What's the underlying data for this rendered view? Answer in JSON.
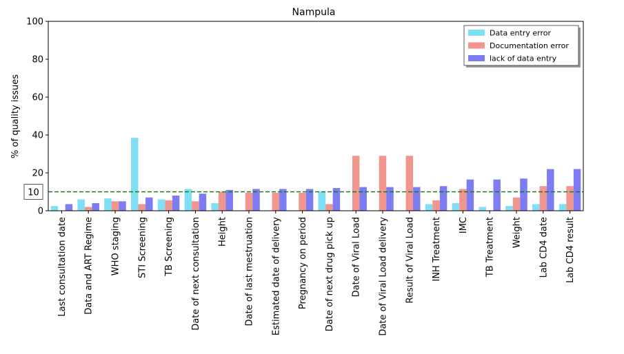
{
  "chart_data": {
    "type": "bar",
    "title": "Nampula",
    "xlabel": "",
    "ylabel": "% of quality issues",
    "ylim": [
      0,
      100
    ],
    "yticks": [
      0,
      20,
      40,
      60,
      80,
      100
    ],
    "grid": false,
    "legend_position": "top-right",
    "categories": [
      "Last consultation date",
      "Data and ART Regime",
      "WHO staging",
      "STI Screening",
      "TB Screening",
      "Date of next consultation",
      "Height",
      "Date of last mestruation",
      "Estimated date of delivery",
      "Pregnancy on period",
      "Date of next drug pick up",
      "Date of Viral Load",
      "Date of Viral Load delivery",
      "Result of Viral Load",
      "INH Treatment",
      "IMC",
      "TB Treatment",
      "Weight",
      "Lab CD4 date",
      "Lab CD4 result"
    ],
    "series": [
      {
        "name": "Data entry error",
        "color": "#7fdff5",
        "values": [
          2.5,
          6,
          6.5,
          38.5,
          6,
          11.5,
          4,
          0,
          0,
          0,
          10,
          0,
          0,
          0,
          3.5,
          4,
          2,
          2.5,
          3.5,
          3.5
        ]
      },
      {
        "name": "Documentation error",
        "color": "#f0968e",
        "values": [
          0,
          2,
          5,
          3.5,
          5.5,
          5,
          10,
          9.5,
          9.5,
          9.5,
          3.5,
          29,
          29,
          29,
          5.5,
          11.5,
          0,
          7,
          13,
          13
        ]
      },
      {
        "name": "lack of data entry",
        "color": "#7d7cf2",
        "values": [
          3.5,
          4,
          5,
          7,
          8,
          9,
          11,
          11.5,
          11.5,
          11.5,
          12,
          12.5,
          12.5,
          12.5,
          13,
          16.5,
          16.5,
          17,
          22,
          22
        ]
      }
    ],
    "reference_line": {
      "value": 10,
      "label": "10",
      "color": "#1a7a1a",
      "style": "dashed"
    }
  }
}
